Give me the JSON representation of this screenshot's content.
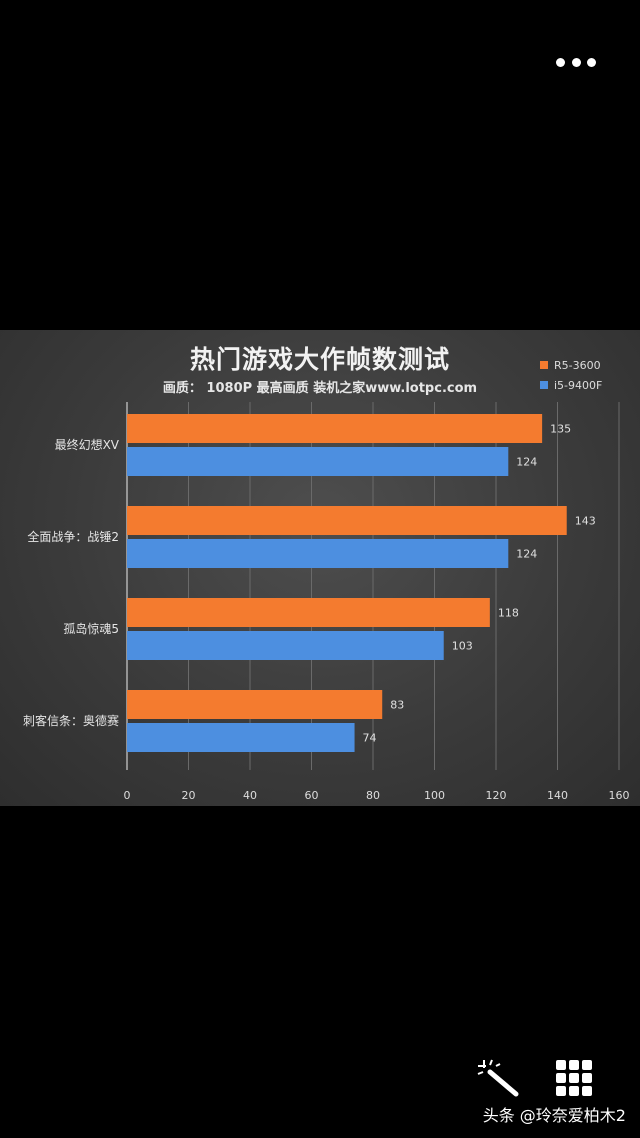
{
  "top_bar": {
    "more_icon": "more-horizontal-icon"
  },
  "chart_data": {
    "type": "bar",
    "orientation": "horizontal",
    "title": "热门游戏大作帧数测试",
    "subtitle": "画质： 1080P 最高画质 装机之家www.lotpc.com",
    "categories": [
      "最终幻想XV",
      "全面战争：战锤2",
      "孤岛惊魂5",
      "刺客信条：奥德赛"
    ],
    "series": [
      {
        "name": "R5-3600",
        "color": "#f47b2f",
        "values": [
          135,
          143,
          118,
          83
        ]
      },
      {
        "name": "i5-9400F",
        "color": "#4d8fe0",
        "values": [
          124,
          124,
          103,
          74
        ]
      }
    ],
    "xlim": [
      0,
      160
    ],
    "xticks": [
      "0",
      "20",
      "40",
      "60",
      "80",
      "100",
      "120",
      "140",
      "160"
    ],
    "grid": true,
    "legend_position": "top-right",
    "data_labels": true
  },
  "bottom_toolbar": {
    "wand_icon": "magic-wand-icon",
    "grid_icon": "grid-icon",
    "watermark": "头条 @玲奈爱柏木2"
  }
}
